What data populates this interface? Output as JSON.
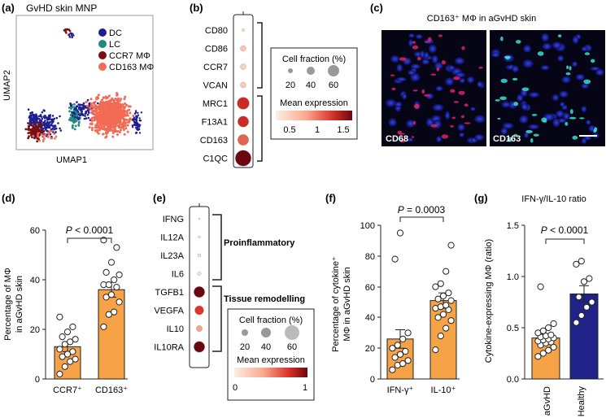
{
  "colors": {
    "dc": "#1f1f8f",
    "lc": "#1f8a80",
    "ccr7": "#7a0f12",
    "cd163": "#f26b55",
    "orange": "#f6a348",
    "navy": "#1f2388",
    "dark_red": "#6b0710"
  },
  "panel_a": {
    "letter": "(a)",
    "title": "GvHD skin MNP",
    "xlabel": "UMAP1",
    "ylabel": "UMAP2",
    "legend": [
      "DC",
      "LC",
      "CCR7 MΦ",
      "CD163 MΦ"
    ]
  },
  "panel_b": {
    "letter": "(b)",
    "genes": [
      "CD80",
      "CD86",
      "CCR7",
      "VCAN",
      "MRC1",
      "F13A1",
      "CD163",
      "C1QC"
    ],
    "cell_fraction": [
      3,
      12,
      12,
      12,
      55,
      45,
      45,
      95
    ],
    "mean_expression": [
      0.15,
      0.35,
      0.25,
      0.3,
      1.2,
      1.2,
      0.9,
      1.7
    ],
    "legend_title_size": "Cell fraction (%)",
    "size_ticks": [
      "20",
      "40",
      "60"
    ],
    "legend_title_color": "Mean expression",
    "color_ticks": [
      "0.5",
      "1",
      "1.5"
    ]
  },
  "panel_c": {
    "letter": "(c)",
    "title": "CD163⁺ MΦ in aGvHD skin",
    "image_left_label": "CD68",
    "image_right_label": "CD163"
  },
  "panel_d": {
    "letter": "(d)",
    "pvalue_prefix": "P",
    "pvalue_text": " < 0.0001",
    "ylabel_line1": "Percentage of MΦ",
    "ylabel_line2": "in aGvHD skin",
    "yticks": [
      "0",
      "20",
      "40",
      "60"
    ],
    "chart_data": {
      "type": "bar",
      "categories": [
        "CCR7⁺",
        "CD163⁺"
      ],
      "values": [
        13,
        36
      ],
      "errors": [
        2,
        3
      ],
      "ylim": [
        0,
        60
      ],
      "points": [
        [
          2,
          5,
          7,
          8,
          9,
          10,
          11,
          12,
          14,
          15,
          16,
          17,
          19,
          21,
          25
        ],
        [
          21,
          26,
          27,
          31,
          33,
          34,
          37,
          38,
          38,
          40,
          42,
          43,
          47,
          53,
          56
        ]
      ]
    }
  },
  "panel_e": {
    "letter": "(e)",
    "genes": [
      "IFNG",
      "IL12A",
      "IL23A",
      "IL6",
      "TGFB1",
      "VEGFA",
      "IL10",
      "IL10RA"
    ],
    "cell_fraction": [
      1,
      2,
      4,
      5,
      45,
      30,
      14,
      45
    ],
    "mean_expression": [
      0.1,
      0.05,
      0.05,
      0.05,
      1.0,
      0.65,
      0.35,
      1.0
    ],
    "group_labels": [
      "Proinflammatory",
      "Tissue remodelling"
    ],
    "legend_title_size": "Cell fraction (%)",
    "size_ticks": [
      "20",
      "40",
      "60"
    ],
    "legend_title_color": "Mean expression",
    "color_ticks": [
      "0",
      "1"
    ]
  },
  "panel_f": {
    "letter": "(f)",
    "pvalue_prefix": "P",
    "pvalue_text": " = 0.0003",
    "ylabel_line1": "Percentage of cytokine⁺",
    "ylabel_line2": "MΦ in aGvHD skin",
    "yticks": [
      "0",
      "20",
      "40",
      "60",
      "80",
      "100"
    ],
    "chart_data": {
      "type": "bar",
      "categories": [
        "IFN-γ⁺",
        "IL-10⁺"
      ],
      "values": [
        26,
        51
      ],
      "errors": [
        6,
        5
      ],
      "ylim": [
        0,
        100
      ],
      "points": [
        [
          6,
          9,
          10,
          12,
          14,
          16,
          18,
          20,
          22,
          26,
          30,
          78,
          95
        ],
        [
          19,
          28,
          33,
          38,
          40,
          42,
          45,
          46,
          47,
          48,
          51,
          52,
          54,
          56,
          60,
          62,
          70,
          87
        ]
      ]
    }
  },
  "panel_g": {
    "letter": "(g)",
    "title": "IFN-γ/IL-10 ratio",
    "pvalue_prefix": "P",
    "pvalue_text": " < 0.0001",
    "ylabel": "Cytokine-expressing MΦ (ratio)",
    "yticks": [
      "0.0",
      "0.5",
      "1.0",
      "1.5"
    ],
    "chart_data": {
      "type": "bar",
      "categories": [
        "aGvHD",
        "Healthy"
      ],
      "values": [
        0.4,
        0.83
      ],
      "errors": [
        0.04,
        0.08
      ],
      "ylim": [
        0,
        1.5
      ],
      "points": [
        [
          0.22,
          0.25,
          0.28,
          0.31,
          0.33,
          0.35,
          0.36,
          0.37,
          0.38,
          0.39,
          0.4,
          0.41,
          0.42,
          0.43,
          0.45,
          0.47,
          0.5,
          0.54,
          0.9
        ],
        [
          0.55,
          0.62,
          0.7,
          0.75,
          0.8,
          0.95,
          0.98,
          1.12,
          1.15
        ]
      ]
    }
  }
}
